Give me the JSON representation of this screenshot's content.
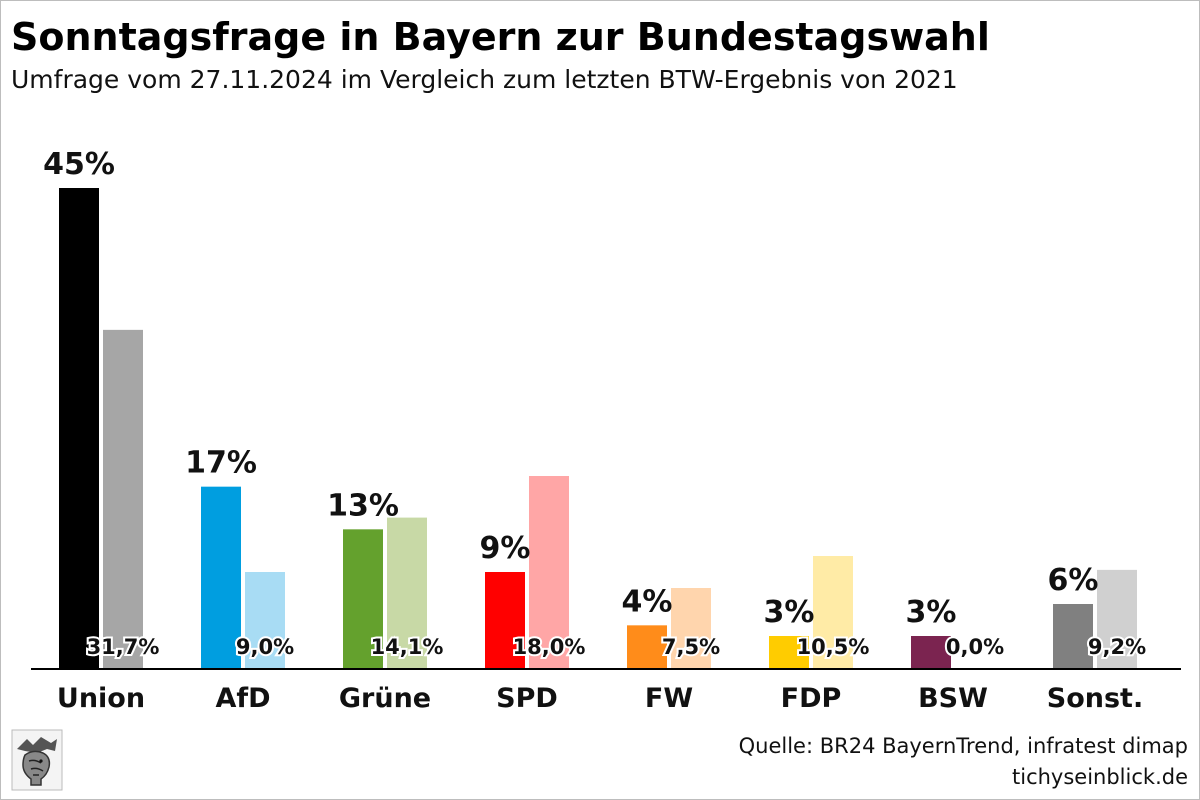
{
  "header": {
    "title": "Sonntagsfrage in Bayern zur Bundestagswahl",
    "subtitle": "Umfrage vom 27.11.2024 im Vergleich zum letzten BTW-Ergebnis von 2021"
  },
  "chart_data": {
    "type": "bar",
    "categories": [
      "Union",
      "AfD",
      "Grüne",
      "SPD",
      "FW",
      "FDP",
      "BSW",
      "Sonst."
    ],
    "series": [
      {
        "values": [
          45,
          17,
          13,
          9,
          4,
          3,
          3,
          6
        ],
        "labels": [
          "45%",
          "17%",
          "13%",
          "9%",
          "4%",
          "3%",
          "3%",
          "6%"
        ],
        "colors": [
          "#000000",
          "#009ee0",
          "#64a12d",
          "#ff0000",
          "#ff8c1a",
          "#ffcc00",
          "#7b2450",
          "#808080"
        ]
      },
      {
        "values": [
          31.7,
          9.0,
          14.1,
          18.0,
          7.5,
          10.5,
          0.0,
          9.2
        ],
        "labels": [
          "31,7%",
          "9,0%",
          "14,1%",
          "18,0%",
          "7,5%",
          "10,5%",
          "0,0%",
          "9,2%"
        ],
        "colors": [
          "#a6a6a6",
          "#a8dcf4",
          "#c8d9a6",
          "#ffa6a6",
          "#ffd5ad",
          "#ffeba6",
          "#c7a3b6",
          "#d0d0d0"
        ]
      }
    ],
    "ylim": [
      0,
      45
    ],
    "grid": false,
    "legend": "none"
  },
  "footer": {
    "source": "Quelle: BR24 BayernTrend, infratest dimap",
    "site": "tichyseinblick.de"
  },
  "logo_icon": "hermes-head-icon"
}
